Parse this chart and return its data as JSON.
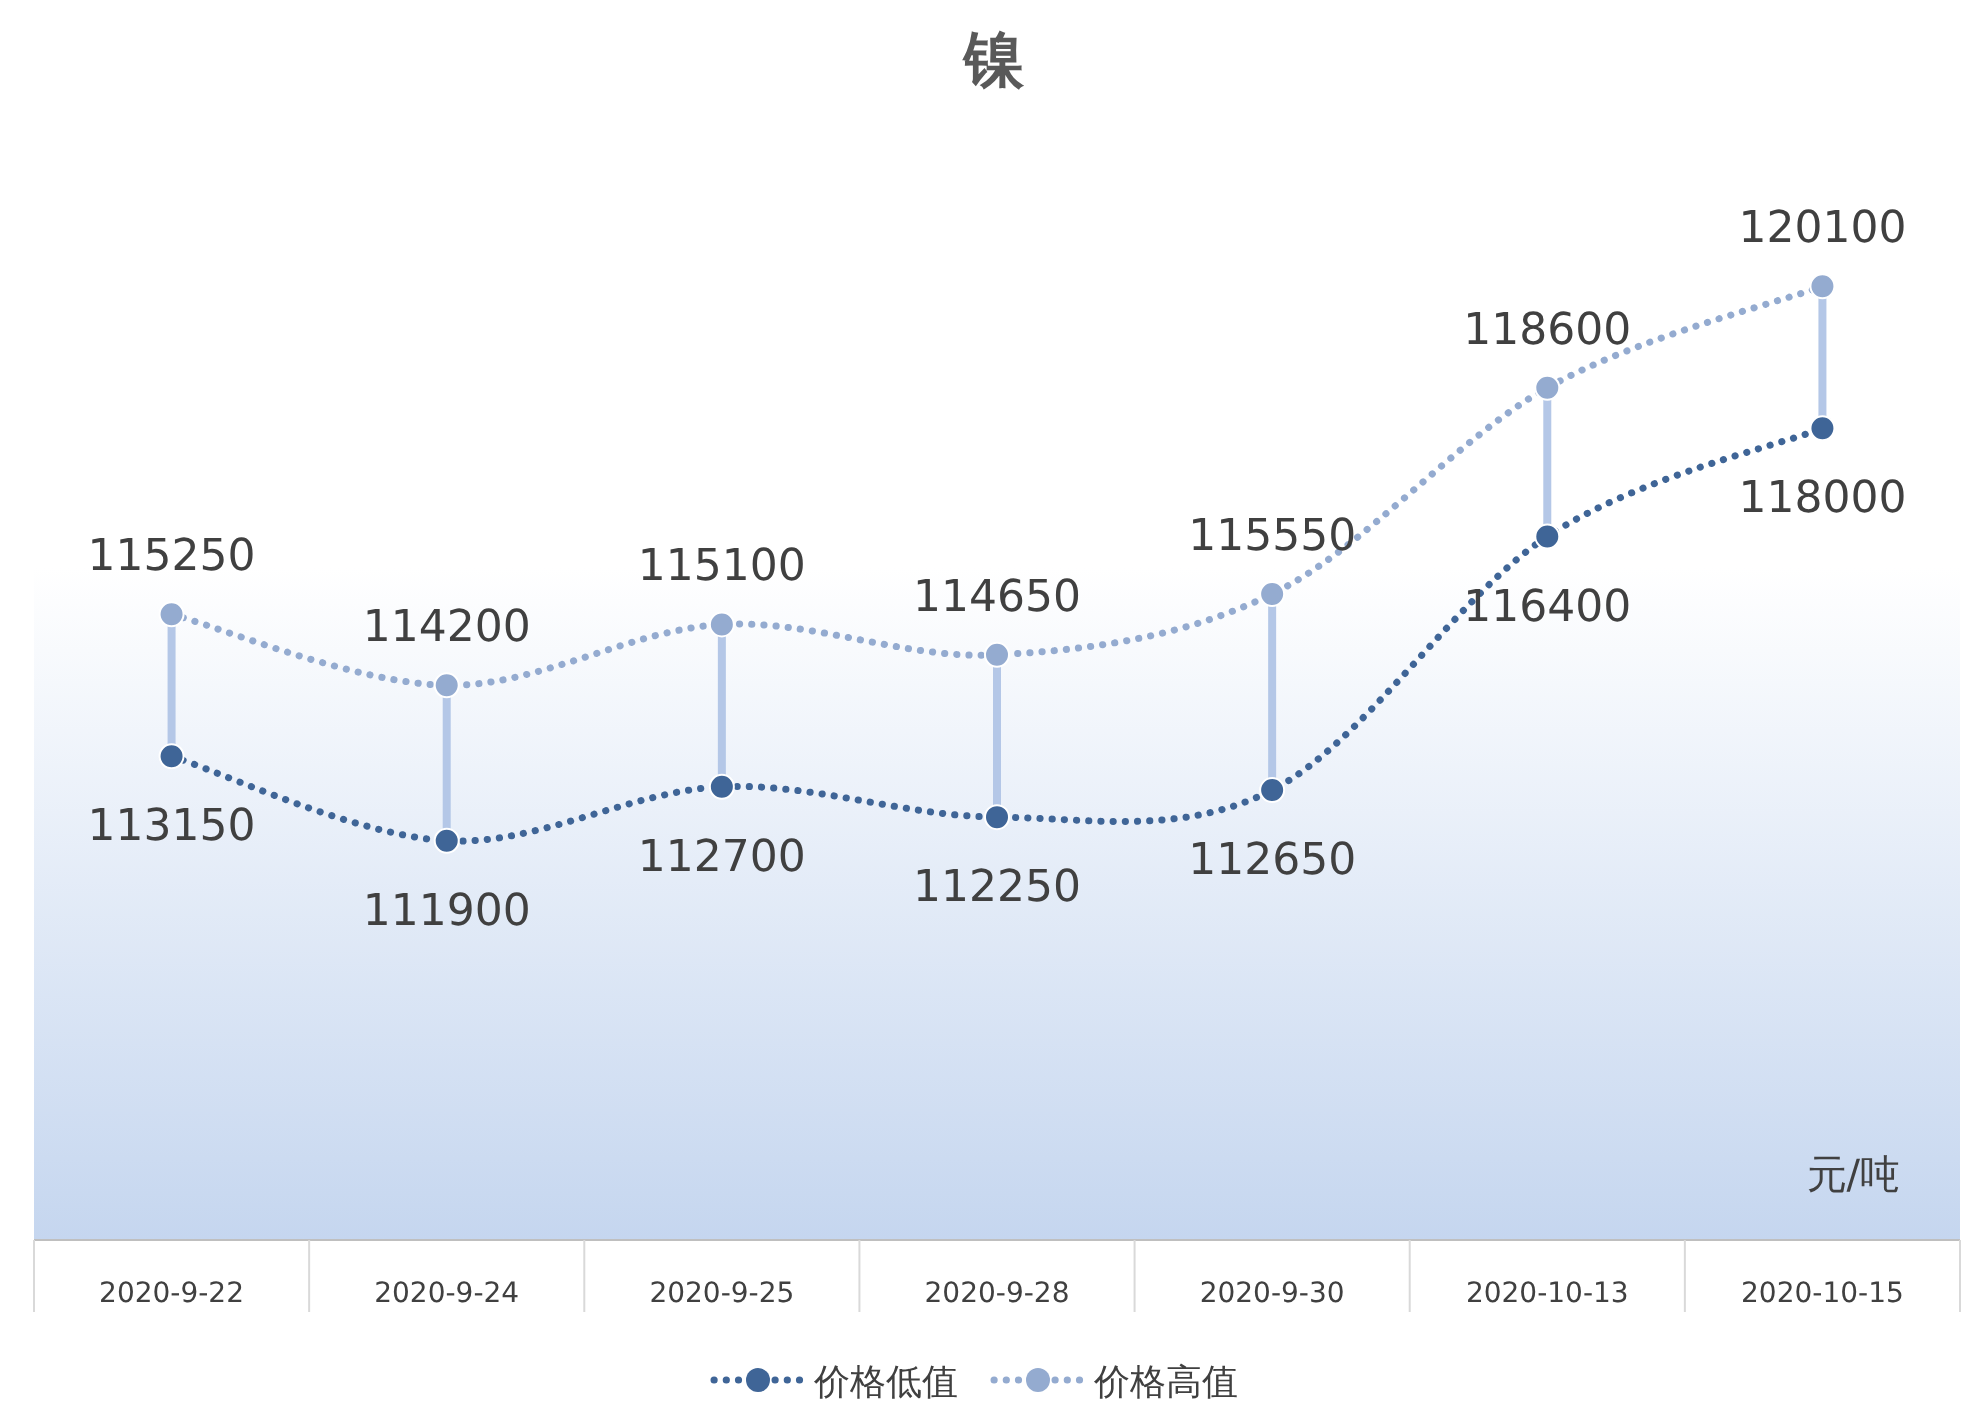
{
  "chart_data": {
    "type": "line",
    "title": "镍",
    "categories": [
      "2020-9-22",
      "2020-9-24",
      "2020-9-25",
      "2020-9-28",
      "2020-9-30",
      "2020-10-13",
      "2020-10-15"
    ],
    "series": [
      {
        "name": "价格低值",
        "color": "#3f6597",
        "values": [
          113150,
          111900,
          112700,
          112250,
          112650,
          116400,
          118000
        ]
      },
      {
        "name": "价格高值",
        "color": "#94abd0",
        "values": [
          115250,
          114200,
          115100,
          114650,
          115550,
          118600,
          120100
        ]
      }
    ],
    "annotations": [
      "元/吨"
    ],
    "data_labels": true,
    "legend": "bottom",
    "marker": "circle",
    "line_style": "dotted"
  }
}
